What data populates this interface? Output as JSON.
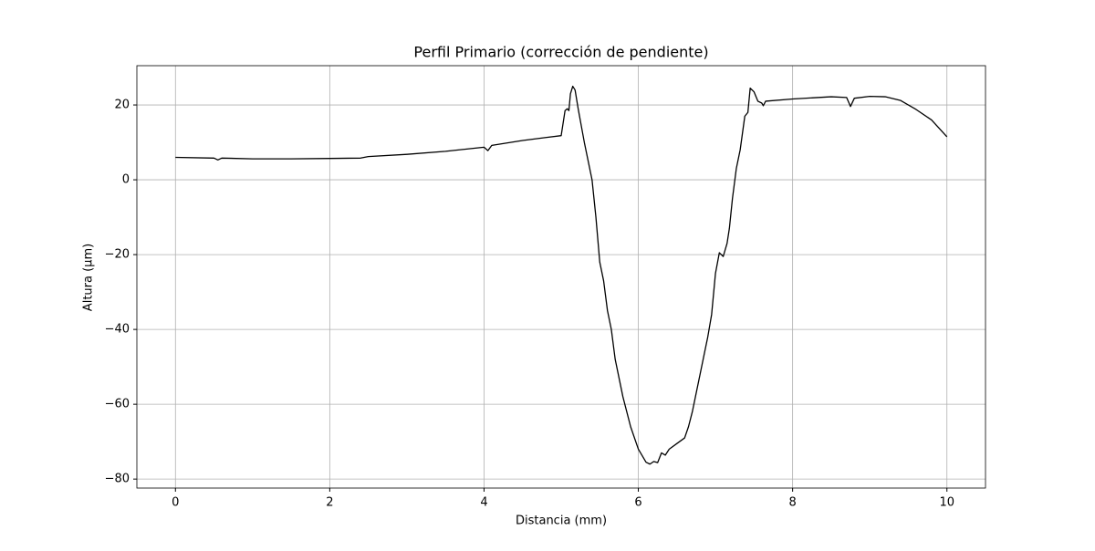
{
  "chart_data": {
    "type": "line",
    "title": "Perfil Primario (corrección de pendiente)",
    "xlabel": "Distancia (mm)",
    "ylabel": "Altura (µm)",
    "color": "#000000",
    "grid": true,
    "xlim": [
      -0.5,
      10.5
    ],
    "ylim": [
      -82.4,
      30.5
    ],
    "xticks": [
      0,
      2,
      4,
      6,
      8,
      10
    ],
    "yticks": [
      {
        "value": -80,
        "label": "−80"
      },
      {
        "value": -60,
        "label": "−60"
      },
      {
        "value": -40,
        "label": "−40"
      },
      {
        "value": -20,
        "label": "−20"
      },
      0,
      20
    ],
    "x": [
      0,
      0.5,
      0.55,
      0.6,
      1,
      1.5,
      2,
      2.4,
      2.5,
      3,
      3.5,
      3.9,
      4.0,
      4.05,
      4.1,
      4.5,
      4.8,
      5.0,
      5.05,
      5.08,
      5.1,
      5.12,
      5.15,
      5.18,
      5.22,
      5.3,
      5.4,
      5.45,
      5.5,
      5.55,
      5.6,
      5.65,
      5.7,
      5.8,
      5.9,
      6.0,
      6.1,
      6.15,
      6.2,
      6.25,
      6.3,
      6.35,
      6.4,
      6.5,
      6.6,
      6.65,
      6.7,
      6.8,
      6.9,
      6.95,
      7.0,
      7.05,
      7.1,
      7.15,
      7.18,
      7.22,
      7.27,
      7.32,
      7.38,
      7.42,
      7.45,
      7.5,
      7.55,
      7.6,
      7.62,
      7.65,
      8.0,
      8.5,
      8.7,
      8.75,
      8.8,
      9.0,
      9.2,
      9.4,
      9.6,
      9.8,
      10.0
    ],
    "values": [
      6,
      5.8,
      5.3,
      5.8,
      5.6,
      5.6,
      5.7,
      5.8,
      6.2,
      6.8,
      7.6,
      8.5,
      8.7,
      7.8,
      9.2,
      10.5,
      11.3,
      11.8,
      18.5,
      19,
      18.5,
      23,
      25,
      24,
      19,
      10,
      0,
      -10,
      -22,
      -27,
      -35,
      -40,
      -48,
      -58,
      -66,
      -72,
      -75.5,
      -76,
      -75.3,
      -75.6,
      -73,
      -73.6,
      -72,
      -70.5,
      -69,
      -66,
      -62,
      -52,
      -42,
      -36,
      -25,
      -19.5,
      -20.5,
      -17,
      -13,
      -5,
      3,
      8,
      17,
      18,
      24.5,
      23.5,
      21,
      20.5,
      19.8,
      21,
      21.6,
      22.2,
      22,
      19.6,
      21.8,
      22.3,
      22.2,
      21.2,
      18.8,
      16,
      11.5
    ]
  }
}
